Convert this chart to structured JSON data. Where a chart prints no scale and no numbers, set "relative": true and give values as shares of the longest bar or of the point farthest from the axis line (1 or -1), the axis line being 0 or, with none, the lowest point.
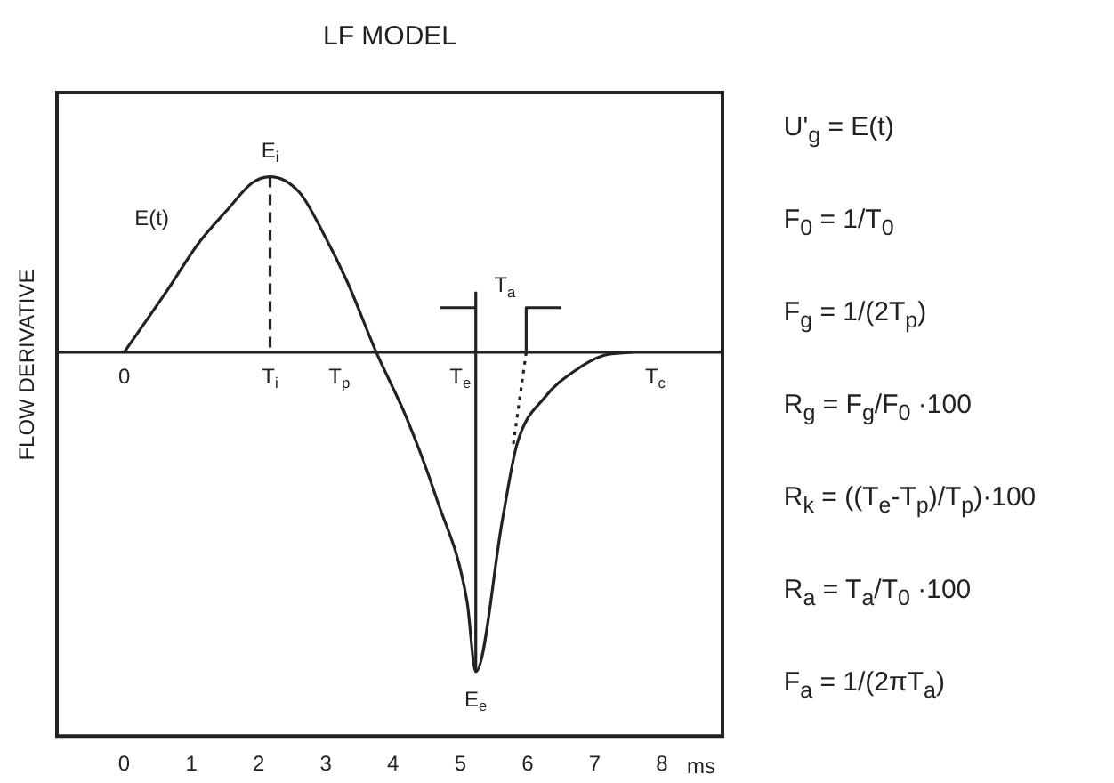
{
  "chart_data": {
    "type": "line",
    "title": "LF MODEL",
    "ylabel": "FLOW DERIVATIVE",
    "xlabel": "ms",
    "relative": true,
    "xlim": [
      -1,
      8.9
    ],
    "xticks": [
      0,
      1,
      2,
      3,
      4,
      5,
      6,
      7,
      8
    ],
    "grid": false,
    "legend": false,
    "marker": "none",
    "series": [
      {
        "color": "#222222",
        "line_style": "solid",
        "x": [
          0,
          0.66,
          1.1,
          1.55,
          1.9,
          2.17,
          2.61,
          2.97,
          3.32,
          3.75,
          4.21,
          4.65,
          5.1,
          5.23,
          5.63,
          5.84,
          6.26,
          6.69,
          7.13,
          7.56
        ],
        "values": [
          0,
          0.2,
          0.34,
          0.45,
          0.53,
          0.55,
          0.5,
          0.37,
          0.22,
          0,
          -0.21,
          -0.46,
          -0.78,
          -1,
          -0.52,
          -0.29,
          -0.14,
          -0.06,
          -0.01,
          0
        ]
      },
      {
        "color": "#222222",
        "line_style": "dashed",
        "x": [
          2.17,
          2.17
        ],
        "values": [
          0.55,
          0
        ]
      },
      {
        "color": "#222222",
        "line_style": "solid",
        "x": [
          5.23,
          5.23
        ],
        "values": [
          -1,
          0.19
        ]
      },
      {
        "color": "#222222",
        "line_style": "solid",
        "x": [
          4.7,
          5.23
        ],
        "values": [
          0.14,
          0.14
        ]
      },
      {
        "color": "#222222",
        "line_style": "solid",
        "x": [
          5.98,
          6.5
        ],
        "values": [
          0.14,
          0.14
        ]
      },
      {
        "color": "#222222",
        "line_style": "solid",
        "x": [
          5.98,
          5.98
        ],
        "values": [
          0.14,
          0
        ]
      },
      {
        "color": "#222222",
        "line_style": "dotted",
        "x": [
          5.98,
          5.78
        ],
        "values": [
          0,
          -0.3
        ]
      }
    ],
    "ref_lines": [
      {
        "axis": "y",
        "value": 0,
        "color": "#222222"
      }
    ],
    "annotations": [
      {
        "text": "E(t)",
        "x": 1.1,
        "y": 0.34
      },
      {
        "text": "E$_{i}$",
        "x": 2.17,
        "y": 0.55
      },
      {
        "text": "E$_{e}$",
        "x": 5.23,
        "y": -1
      },
      {
        "text": "0",
        "x": 0,
        "y": 0
      },
      {
        "text": "T$_{i}$",
        "x": 2.17,
        "y": 0
      },
      {
        "text": "T$_{p}$",
        "x": 3.2,
        "y": 0
      },
      {
        "text": "T$_{e}$",
        "x": 5.0,
        "y": 0
      },
      {
        "text": "T$_{c}$",
        "x": 7.9,
        "y": 0
      },
      {
        "text": "T$_{a}$",
        "x": 5.98,
        "y": 0.14
      },
      "U'$_{g}$ = E(t)",
      "F$_{0}$ = 1/T$_{0}$",
      "F$_{g}$ = 1/(2T$_{p}$)",
      "R$_{g}$ = F$_{g}$/F$_{0}$ ·100",
      "R$_{k}$ = ((T$_{e}$-T$_{p}$)/T$_{p}$)·100",
      "R$_{a}$ = T$_{a}$/T$_{0}$ ·100",
      "F$_{a}$ = 1/(2πT$_{a}$)"
    ]
  }
}
